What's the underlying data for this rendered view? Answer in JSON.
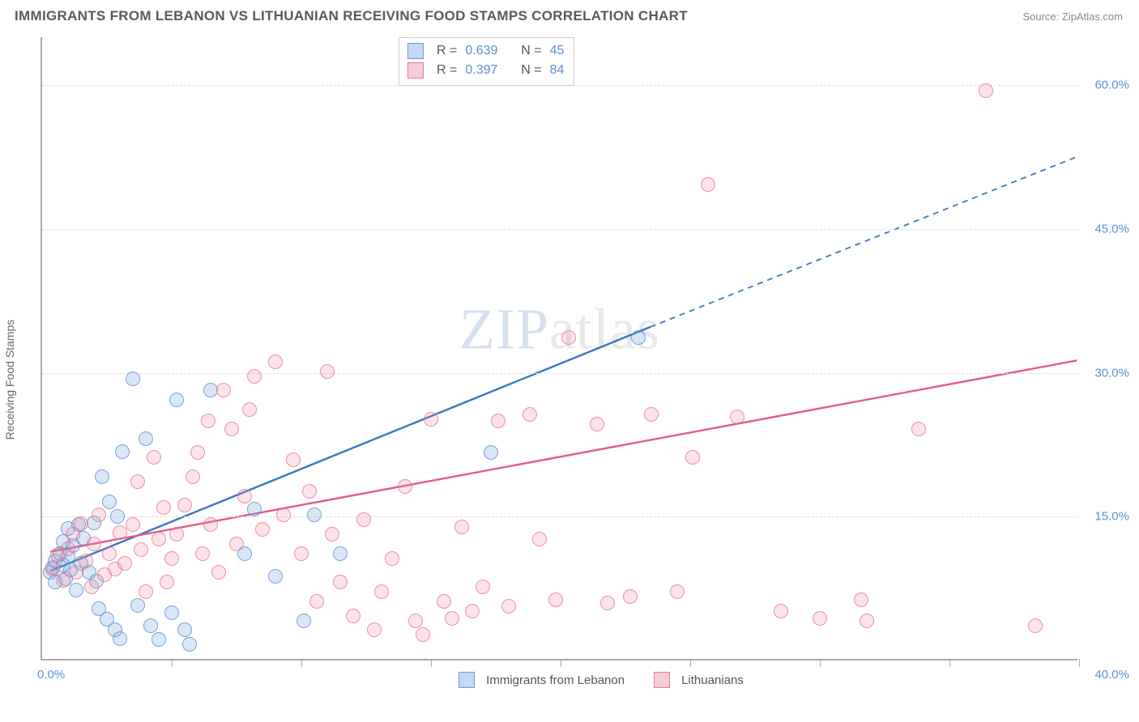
{
  "header": {
    "title": "IMMIGRANTS FROM LEBANON VS LITHUANIAN RECEIVING FOOD STAMPS CORRELATION CHART",
    "source_prefix": "Source: ",
    "source_name": "ZipAtlas.com"
  },
  "ylabel": "Receiving Food Stamps",
  "watermark": {
    "zip": "ZIP",
    "atlas": "atlas"
  },
  "chart": {
    "type": "scatter-correlation",
    "xlim": [
      0,
      40
    ],
    "ylim": [
      0,
      65
    ],
    "x_tick_step_count": 8,
    "x_min_label": "0.0%",
    "x_max_label": "40.0%",
    "y_ticks": [
      {
        "v": 15,
        "label": "15.0%"
      },
      {
        "v": 30,
        "label": "30.0%"
      },
      {
        "v": 45,
        "label": "45.0%"
      },
      {
        "v": 60,
        "label": "60.0%"
      }
    ],
    "background_color": "#ffffff",
    "grid_color": "#dddddd",
    "axis_color": "#aaaaaa",
    "tick_label_color": "#5b8dd6",
    "marker_radius": 9,
    "series": [
      {
        "key": "lebanon",
        "label": "Immigrants from Lebanon",
        "color_fill": "rgba(122,168,226,0.28)",
        "color_stroke": "#5a8cd2",
        "R": "0.639",
        "N": "45",
        "trend": {
          "x1": 0.3,
          "y1": 9.2,
          "x2": 23.5,
          "y2": 34.7,
          "dash_from_x": 23.5,
          "dash_to": [
            40,
            52.5
          ],
          "stroke": "#3a76c3",
          "width": 2.4
        },
        "points": [
          [
            0.3,
            9.0
          ],
          [
            0.4,
            9.5
          ],
          [
            0.5,
            10.2
          ],
          [
            0.5,
            8.0
          ],
          [
            0.7,
            11.0
          ],
          [
            0.8,
            9.8
          ],
          [
            0.8,
            12.2
          ],
          [
            0.9,
            8.4
          ],
          [
            1.0,
            10.7
          ],
          [
            1.0,
            13.6
          ],
          [
            1.1,
            9.3
          ],
          [
            1.2,
            11.8
          ],
          [
            1.3,
            7.2
          ],
          [
            1.4,
            14.0
          ],
          [
            1.5,
            10.0
          ],
          [
            1.6,
            12.6
          ],
          [
            1.8,
            9.0
          ],
          [
            2.0,
            14.2
          ],
          [
            2.1,
            8.1
          ],
          [
            2.2,
            5.2
          ],
          [
            2.3,
            19.0
          ],
          [
            2.5,
            4.1
          ],
          [
            2.6,
            16.4
          ],
          [
            2.8,
            3.0
          ],
          [
            2.9,
            14.9
          ],
          [
            3.0,
            2.1
          ],
          [
            3.1,
            21.6
          ],
          [
            3.5,
            29.2
          ],
          [
            3.7,
            5.6
          ],
          [
            4.0,
            23.0
          ],
          [
            4.2,
            3.5
          ],
          [
            4.5,
            2.0
          ],
          [
            5.0,
            4.8
          ],
          [
            5.2,
            27.0
          ],
          [
            5.5,
            3.0
          ],
          [
            5.7,
            1.5
          ],
          [
            6.5,
            28.0
          ],
          [
            7.8,
            11.0
          ],
          [
            8.2,
            15.6
          ],
          [
            9.0,
            8.6
          ],
          [
            10.1,
            4.0
          ],
          [
            10.5,
            15.0
          ],
          [
            11.5,
            11.0
          ],
          [
            17.3,
            21.5
          ],
          [
            23.0,
            33.5
          ]
        ]
      },
      {
        "key": "lithuanians",
        "label": "Lithuanians",
        "color_fill": "rgba(238,140,164,0.24)",
        "color_stroke": "#e07a96",
        "R": "0.397",
        "N": "84",
        "trend": {
          "x1": 0.3,
          "y1": 11.2,
          "x2": 40,
          "y2": 31.2,
          "stroke": "#e55a82",
          "width": 2.4
        },
        "points": [
          [
            0.4,
            9.4
          ],
          [
            0.6,
            10.8
          ],
          [
            0.8,
            8.2
          ],
          [
            1.0,
            11.5
          ],
          [
            1.2,
            13.0
          ],
          [
            1.3,
            9.0
          ],
          [
            1.5,
            14.1
          ],
          [
            1.7,
            10.2
          ],
          [
            1.9,
            7.5
          ],
          [
            2.0,
            12.0
          ],
          [
            2.2,
            15.0
          ],
          [
            2.4,
            8.8
          ],
          [
            2.6,
            11.0
          ],
          [
            2.8,
            9.4
          ],
          [
            3.0,
            13.2
          ],
          [
            3.2,
            10.0
          ],
          [
            3.5,
            14.0
          ],
          [
            3.7,
            18.5
          ],
          [
            3.8,
            11.4
          ],
          [
            4.0,
            7.0
          ],
          [
            4.3,
            21.0
          ],
          [
            4.5,
            12.5
          ],
          [
            4.7,
            15.8
          ],
          [
            4.8,
            8.0
          ],
          [
            5.0,
            10.5
          ],
          [
            5.2,
            13.0
          ],
          [
            5.5,
            16.0
          ],
          [
            5.8,
            19.0
          ],
          [
            6.0,
            21.5
          ],
          [
            6.2,
            11.0
          ],
          [
            6.4,
            24.8
          ],
          [
            6.5,
            14.0
          ],
          [
            6.8,
            9.0
          ],
          [
            7.0,
            28.0
          ],
          [
            7.3,
            24.0
          ],
          [
            7.5,
            12.0
          ],
          [
            7.8,
            17.0
          ],
          [
            8.0,
            26.0
          ],
          [
            8.2,
            29.5
          ],
          [
            8.5,
            13.5
          ],
          [
            9.0,
            31.0
          ],
          [
            9.3,
            15.0
          ],
          [
            9.7,
            20.8
          ],
          [
            10.0,
            11.0
          ],
          [
            10.3,
            17.5
          ],
          [
            10.6,
            6.0
          ],
          [
            11.0,
            30.0
          ],
          [
            11.2,
            13.0
          ],
          [
            11.5,
            8.0
          ],
          [
            12.0,
            4.5
          ],
          [
            12.4,
            14.5
          ],
          [
            12.8,
            3.0
          ],
          [
            13.1,
            7.0
          ],
          [
            13.5,
            10.5
          ],
          [
            14.0,
            18.0
          ],
          [
            14.4,
            4.0
          ],
          [
            14.7,
            2.5
          ],
          [
            15.0,
            25.0
          ],
          [
            15.5,
            6.0
          ],
          [
            15.8,
            4.2
          ],
          [
            16.2,
            13.8
          ],
          [
            16.6,
            5.0
          ],
          [
            17.0,
            7.5
          ],
          [
            17.6,
            24.8
          ],
          [
            18.0,
            5.5
          ],
          [
            18.8,
            25.5
          ],
          [
            19.2,
            12.5
          ],
          [
            19.8,
            6.2
          ],
          [
            20.3,
            33.5
          ],
          [
            21.4,
            24.5
          ],
          [
            21.8,
            5.8
          ],
          [
            22.7,
            6.5
          ],
          [
            23.5,
            25.5
          ],
          [
            24.5,
            7.0
          ],
          [
            25.1,
            21.0
          ],
          [
            25.7,
            49.5
          ],
          [
            26.8,
            25.2
          ],
          [
            28.5,
            5.0
          ],
          [
            30.0,
            4.2
          ],
          [
            31.6,
            6.2
          ],
          [
            31.8,
            4.0
          ],
          [
            33.8,
            24.0
          ],
          [
            36.4,
            59.3
          ],
          [
            38.3,
            3.5
          ]
        ]
      }
    ]
  },
  "legend_top": {
    "r_label": "R =",
    "n_label": "N ="
  }
}
